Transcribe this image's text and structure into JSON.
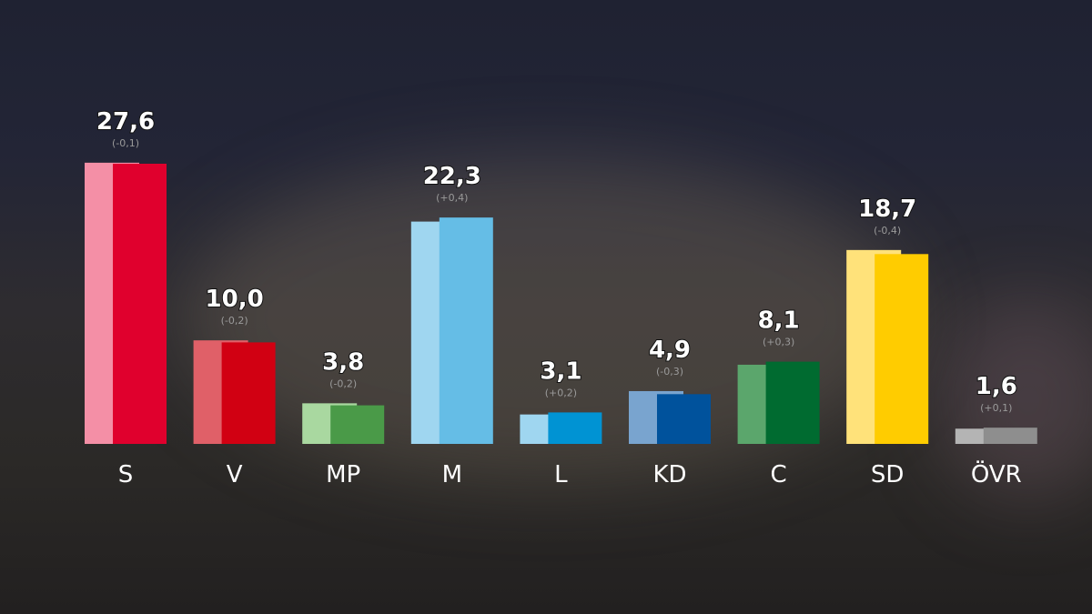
{
  "chart_data": {
    "type": "bar",
    "categories": [
      "S",
      "V",
      "MP",
      "M",
      "L",
      "KD",
      "C",
      "SD",
      "ÖVR"
    ],
    "series": [
      {
        "values": [
          27.7,
          10.2,
          4.0,
          21.9,
          2.9,
          5.2,
          7.8,
          19.1,
          1.5
        ]
      },
      {
        "values": [
          27.6,
          10.0,
          3.8,
          22.3,
          3.1,
          4.9,
          8.1,
          18.7,
          1.6
        ]
      }
    ],
    "value_labels": [
      "27,6",
      "10,0",
      "3,8",
      "22,3",
      "3,1",
      "4,9",
      "8,1",
      "18,7",
      "1,6"
    ],
    "change_labels": [
      "(-0,1)",
      "(-0,2)",
      "(-0,2)",
      "(+0,4)",
      "(+0,2)",
      "(-0,3)",
      "(+0,3)",
      "(-0,4)",
      "(+0,1)"
    ],
    "colors_previous": [
      "#f48fa6",
      "#e06068",
      "#a9d8a0",
      "#9fd6f0",
      "#9fd6f0",
      "#79a4cf",
      "#5ba66c",
      "#ffe27a",
      "#b4b4b4"
    ],
    "colors_current": [
      "#e0002d",
      "#d10012",
      "#4a9a48",
      "#65bde6",
      "#0093d3",
      "#00529c",
      "#006b30",
      "#ffcc00",
      "#8e8e8e"
    ],
    "ylim": [
      0,
      30
    ],
    "grid": false,
    "legend": "none"
  }
}
